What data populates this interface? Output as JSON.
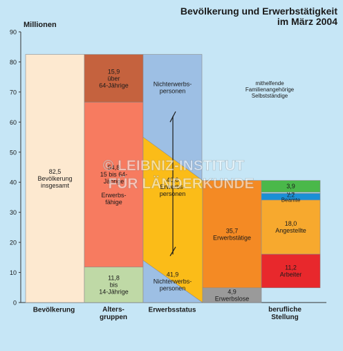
{
  "chart_data": {
    "type": "bar",
    "title": "Bevölkerung und Erwerbstätigkeit",
    "subtitle": "im März 2004",
    "ylabel": "Millionen",
    "ylim": [
      0,
      90
    ],
    "yticks": [
      0,
      10,
      20,
      30,
      40,
      50,
      60,
      70,
      80,
      90
    ],
    "grid": false,
    "watermark": "© LEIBNIZ-INSTITUT FÜR LÄNDERKUNDE",
    "categories": [
      "Bevölkerung",
      "Altersgruppen",
      "Erwerbsstatus",
      "berufliche Stellung"
    ],
    "category_labels": [
      [
        "Bevölkerung"
      ],
      [
        "Alters-",
        "gruppen"
      ],
      [
        "Erwerbsstatus"
      ],
      [
        "berufliche",
        "Stellung"
      ]
    ],
    "colors": {
      "bevoelkerung": "#fde9d0",
      "alt_jung": "#bfd9a6",
      "alt_erwerbsfaehig": "#f77b60",
      "alt_ueber64": "#c5623e",
      "nichterwerb": "#9dbfe4",
      "erwerbspersonen": "#fbbc18",
      "erwerbstaetige": "#f48a24",
      "erwerbslose": "#9a9a9a",
      "arbeiter": "#e8282c",
      "angestellte": "#f7a92e",
      "beamte": "#1b8fd6",
      "mithelfende": "#b4d9ef",
      "selbststaendige": "#4ab84a"
    },
    "series": [
      {
        "category": "Bevölkerung",
        "segments": [
          {
            "key": "gesamt",
            "value": 82.5,
            "label_lines": [
              "82,5",
              "Bevölkerung",
              "insgesamt"
            ]
          }
        ]
      },
      {
        "category": "Altersgruppen",
        "segments": [
          {
            "key": "jung",
            "value": 11.8,
            "label_lines": [
              "11,8",
              "bis",
              "14-Jährige"
            ]
          },
          {
            "key": "erwerbsfaehig",
            "value": 54.8,
            "label_lines": [
              "54,8",
              "15 bis 64-",
              "Jährige",
              "",
              "Erwerbs-",
              "fähige"
            ]
          },
          {
            "key": "ueber64",
            "value": 15.9,
            "label_lines": [
              "15,9",
              "über",
              "64-Jährige"
            ]
          }
        ]
      },
      {
        "category": "Erwerbsstatus",
        "segments": [
          {
            "key": "nicht_unten",
            "value": 41.9,
            "label_lines": [
              "41,9",
              "Nichterwerbs-",
              "personen"
            ]
          },
          {
            "key": "erwerbspersonen",
            "value": 40.6,
            "label_lines": [
              "40,6",
              "Erwerbs-",
              "personen"
            ]
          },
          {
            "key": "nicht_oben",
            "value": 41.9,
            "label_lines": [
              "Nichterwerbs-",
              "personen"
            ]
          }
        ]
      },
      {
        "category": "Erwerbspersonen",
        "segments": [
          {
            "key": "erwerbslose",
            "value": 4.9,
            "label_lines": [
              "4,9",
              "Erwerbslose"
            ]
          },
          {
            "key": "erwerbstaetige",
            "value": 35.7,
            "label_lines": [
              "35,7",
              "Erwerbstätige"
            ]
          }
        ]
      },
      {
        "category": "berufliche Stellung",
        "segments": [
          {
            "key": "arbeiter",
            "value": 11.2,
            "label_lines": [
              "11,2",
              "Arbeiter"
            ]
          },
          {
            "key": "angestellte",
            "value": 18.0,
            "label_lines": [
              "18,0",
              "Angestellte"
            ]
          },
          {
            "key": "beamte",
            "value": 2.2,
            "label_lines": [
              "2,2",
              "Beamte"
            ]
          },
          {
            "key": "mithelfende",
            "value": 0.4,
            "label_lines": [
              "0,4"
            ]
          },
          {
            "key": "selbststaendige",
            "value": 3.9,
            "label_lines": [
              "3,9"
            ]
          }
        ]
      }
    ],
    "annotations": [
      "mithelfende",
      "Familienangehörige",
      "Selbstständige"
    ]
  }
}
